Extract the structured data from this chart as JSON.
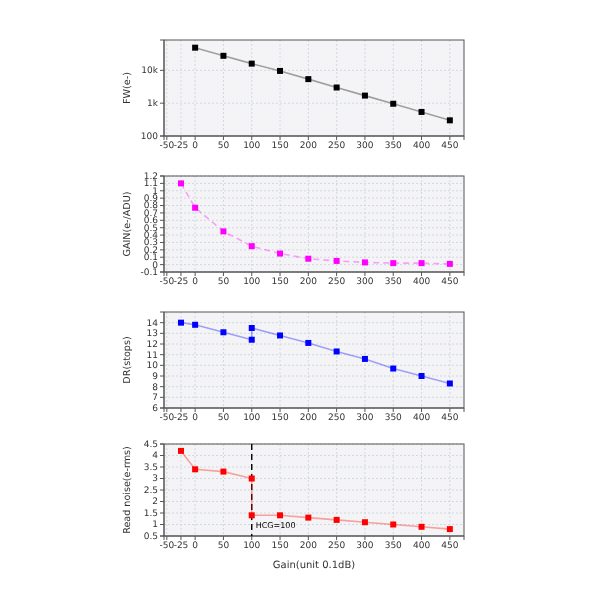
{
  "chart_data": [
    {
      "type": "line",
      "ylabel": "FW(e-)",
      "log": "y",
      "xlim": [
        -55,
        475
      ],
      "xticks": [
        -50,
        -25,
        0,
        50,
        100,
        150,
        200,
        250,
        300,
        350,
        400,
        450
      ],
      "ylim": [
        100,
        84000
      ],
      "yticks": [
        {
          "value": 100,
          "label": "100"
        },
        {
          "value": 1000,
          "label": "1k"
        },
        {
          "value": 10000,
          "label": "10k"
        }
      ],
      "grid": true,
      "marker": "square",
      "line_style": "solid",
      "series": [
        {
          "color": "#000000",
          "x": [
            0,
            50,
            100,
            150,
            200,
            250,
            300,
            350,
            400,
            450
          ],
          "values": [
            49000,
            27700,
            16000,
            9600,
            5400,
            3000,
            1700,
            960,
            540,
            300
          ]
        }
      ]
    },
    {
      "type": "line",
      "ylabel": "GAIN(e-/ADU)",
      "xlim": [
        -55,
        475
      ],
      "xticks": [
        -50,
        -25,
        0,
        50,
        100,
        150,
        200,
        250,
        300,
        350,
        400,
        450
      ],
      "ylim": [
        -0.1,
        1.2
      ],
      "yticks": [
        -0.1,
        0,
        0.1,
        0.2,
        0.3,
        0.4,
        0.5,
        0.6,
        0.7,
        0.8,
        0.9,
        1,
        1.1,
        1.2
      ],
      "grid": true,
      "marker": "square",
      "line_style": "dashed",
      "series": [
        {
          "color": "#ff00ff",
          "x": [
            -25,
            0,
            50,
            100,
            150,
            200,
            250,
            300,
            350,
            400,
            450
          ],
          "values": [
            1.1,
            0.77,
            0.45,
            0.25,
            0.15,
            0.08,
            0.05,
            0.03,
            0.02,
            0.02,
            0.01
          ]
        }
      ]
    },
    {
      "type": "line",
      "ylabel": "DR(stops)",
      "xlim": [
        -55,
        475
      ],
      "xticks": [
        -50,
        -25,
        0,
        50,
        100,
        150,
        200,
        250,
        300,
        350,
        400,
        450
      ],
      "ylim": [
        6,
        15
      ],
      "yticks": [
        6,
        7,
        8,
        9,
        10,
        11,
        12,
        13,
        14
      ],
      "grid": true,
      "marker": "square",
      "line_style": "solid",
      "series": [
        {
          "color": "#0000ff",
          "x": [
            -25,
            0,
            50,
            100,
            100,
            150,
            200,
            250,
            300,
            350,
            400,
            450
          ],
          "values": [
            14,
            13.8,
            13.1,
            12.4,
            13.5,
            12.8,
            12.1,
            11.3,
            10.6,
            9.7,
            9,
            8.3
          ]
        }
      ]
    },
    {
      "type": "line",
      "ylabel": "Read noise(e-rms)",
      "xlabel": "Gain(unit 0.1dB)",
      "xlim": [
        -55,
        475
      ],
      "xticks": [
        -50,
        -25,
        0,
        50,
        100,
        150,
        200,
        250,
        300,
        350,
        400,
        450
      ],
      "ylim": [
        0.5,
        4.5
      ],
      "yticks": [
        0.5,
        1,
        1.5,
        2,
        2.5,
        3,
        3.5,
        4,
        4.5
      ],
      "grid": true,
      "marker": "square",
      "line_style": "solid",
      "ref_lines": [
        {
          "axis": "x",
          "value": 100,
          "label": "HCG=100",
          "color": "#000000",
          "line_style": "dashed"
        }
      ],
      "series": [
        {
          "color": "#ff0000",
          "x": [
            -25,
            0,
            50,
            100,
            100,
            150,
            200,
            250,
            300,
            350,
            400,
            450
          ],
          "values": [
            4.2,
            3.4,
            3.3,
            3.0,
            1.4,
            1.4,
            1.3,
            1.2,
            1.1,
            1.0,
            0.9,
            0.8
          ]
        }
      ]
    }
  ]
}
